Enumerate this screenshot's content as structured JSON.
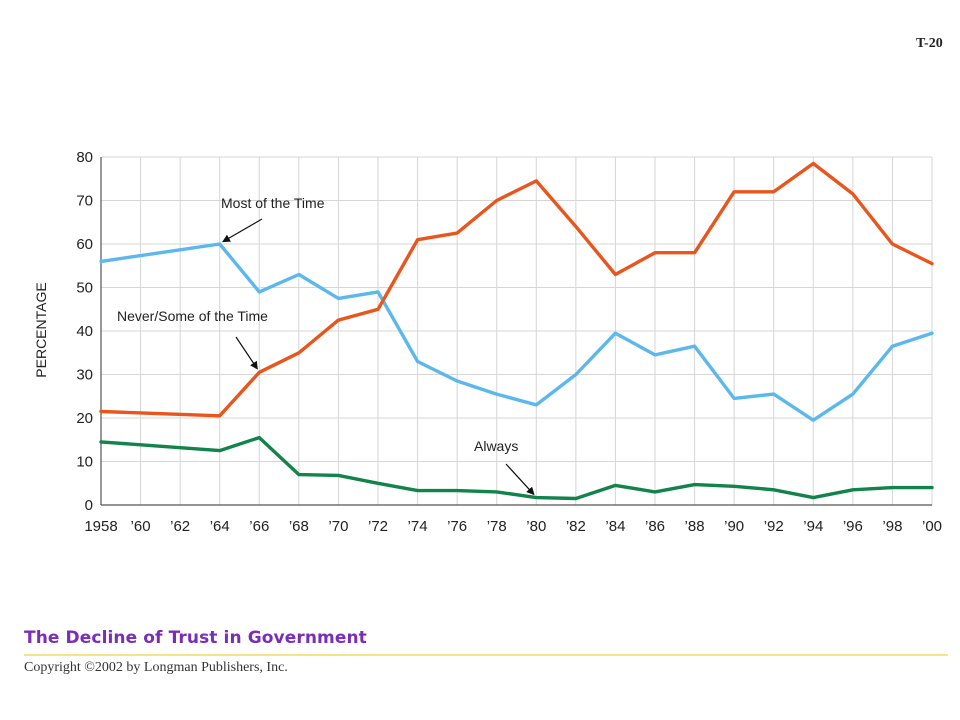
{
  "page_code": "T-20",
  "footer": {
    "title": "The Decline of Trust in Government",
    "copyright": "Copyright ©2002 by Longman Publishers, Inc."
  },
  "chart_data": {
    "type": "line",
    "title": "The Decline of Trust in Government",
    "xlabel": "",
    "ylabel": "PERCENTAGE",
    "ylim": [
      0,
      80
    ],
    "yticks": [
      0,
      10,
      20,
      30,
      40,
      50,
      60,
      70,
      80
    ],
    "grid": true,
    "x": [
      1958,
      1960,
      1962,
      1964,
      1966,
      1968,
      1970,
      1972,
      1974,
      1976,
      1978,
      1980,
      1982,
      1984,
      1986,
      1988,
      1990,
      1992,
      1994,
      1996,
      1998,
      2000
    ],
    "xtick_labels": [
      "1958",
      "’60",
      "’62",
      "’64",
      "’66",
      "’68",
      "’70",
      "’72",
      "’74",
      "’76",
      "’78",
      "’80",
      "’82",
      "’84",
      "’86",
      "’88",
      "’90",
      "’92",
      "’94",
      "’96",
      "’98",
      "’00"
    ],
    "series": [
      {
        "name": "Most of the Time",
        "color": "#5cb8ec",
        "points": [
          [
            1958,
            56
          ],
          [
            1964,
            60
          ],
          [
            1966,
            49
          ],
          [
            1968,
            53
          ],
          [
            1970,
            47.5
          ],
          [
            1972,
            49
          ],
          [
            1974,
            33
          ],
          [
            1976,
            28.5
          ],
          [
            1978,
            25.5
          ],
          [
            1980,
            23
          ],
          [
            1982,
            30
          ],
          [
            1984,
            39.5
          ],
          [
            1986,
            34.5
          ],
          [
            1988,
            36.5
          ],
          [
            1990,
            24.5
          ],
          [
            1992,
            25.5
          ],
          [
            1994,
            19.5
          ],
          [
            1996,
            25.5
          ],
          [
            1998,
            36.5
          ],
          [
            2000,
            39.5
          ]
        ]
      },
      {
        "name": "Never/Some of the Time",
        "color": "#e8561e",
        "points": [
          [
            1958,
            21.5
          ],
          [
            1964,
            20.5
          ],
          [
            1966,
            30.5
          ],
          [
            1968,
            35
          ],
          [
            1970,
            42.5
          ],
          [
            1972,
            45
          ],
          [
            1974,
            61
          ],
          [
            1976,
            62.5
          ],
          [
            1978,
            70
          ],
          [
            1980,
            74.5
          ],
          [
            1982,
            64
          ],
          [
            1984,
            53
          ],
          [
            1986,
            58
          ],
          [
            1988,
            58
          ],
          [
            1990,
            72
          ],
          [
            1992,
            72
          ],
          [
            1994,
            78.5
          ],
          [
            1996,
            71.5
          ],
          [
            1998,
            60
          ],
          [
            2000,
            55.5
          ]
        ]
      },
      {
        "name": "Always",
        "color": "#12834a",
        "points": [
          [
            1958,
            14.5
          ],
          [
            1964,
            12.5
          ],
          [
            1966,
            15.5
          ],
          [
            1968,
            7
          ],
          [
            1970,
            6.8
          ],
          [
            1972,
            5
          ],
          [
            1974,
            3.3
          ],
          [
            1976,
            3.3
          ],
          [
            1978,
            3
          ],
          [
            1980,
            1.7
          ],
          [
            1982,
            1.5
          ],
          [
            1984,
            4.5
          ],
          [
            1986,
            3
          ],
          [
            1988,
            4.7
          ],
          [
            1990,
            4.3
          ],
          [
            1992,
            3.5
          ],
          [
            1994,
            1.7
          ],
          [
            1996,
            3.5
          ],
          [
            1998,
            4
          ],
          [
            2000,
            4
          ]
        ]
      }
    ],
    "annotations": [
      {
        "text": "Most of the Time",
        "series": "Most of the Time",
        "points_to": [
          1964,
          60
        ]
      },
      {
        "text": "Never/Some of the Time",
        "series": "Never/Some of the Time",
        "points_to": [
          1966,
          30.5
        ]
      },
      {
        "text": "Always",
        "series": "Always",
        "points_to": [
          1980,
          1.7
        ]
      }
    ]
  }
}
